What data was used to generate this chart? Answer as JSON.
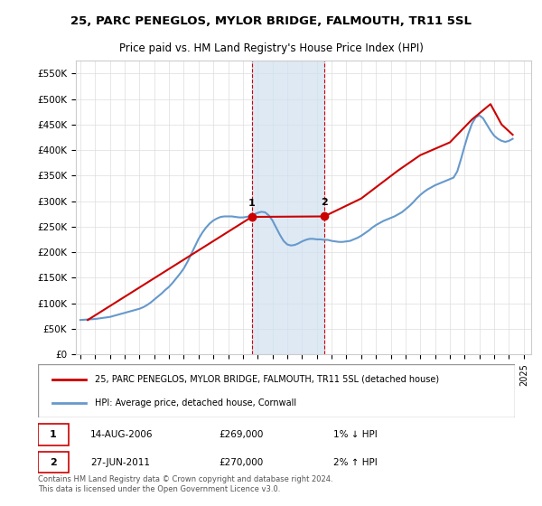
{
  "title": "25, PARC PENEGLOS, MYLOR BRIDGE, FALMOUTH, TR11 5SL",
  "subtitle": "Price paid vs. HM Land Registry's House Price Index (HPI)",
  "legend_line1": "25, PARC PENEGLOS, MYLOR BRIDGE, FALMOUTH, TR11 5SL (detached house)",
  "legend_line2": "HPI: Average price, detached house, Cornwall",
  "annotation1": {
    "num": "1",
    "date": "14-AUG-2006",
    "price": "£269,000",
    "pct": "1% ↓ HPI"
  },
  "annotation2": {
    "num": "2",
    "date": "27-JUN-2011",
    "price": "£270,000",
    "pct": "2% ↑ HPI"
  },
  "footer": "Contains HM Land Registry data © Crown copyright and database right 2024.\nThis data is licensed under the Open Government Licence v3.0.",
  "hpi_color": "#6699cc",
  "price_color": "#cc0000",
  "marker_color": "#cc0000",
  "shading_color": "#d0e0f0",
  "vline_color": "#cc0000",
  "ylim": [
    0,
    575000
  ],
  "yticks": [
    0,
    50000,
    100000,
    150000,
    200000,
    250000,
    300000,
    350000,
    400000,
    450000,
    500000,
    550000
  ],
  "xlim_start": 1995.0,
  "xlim_end": 2025.5,
  "hpi_years": [
    1995.0,
    1995.25,
    1995.5,
    1995.75,
    1996.0,
    1996.25,
    1996.5,
    1996.75,
    1997.0,
    1997.25,
    1997.5,
    1997.75,
    1998.0,
    1998.25,
    1998.5,
    1998.75,
    1999.0,
    1999.25,
    1999.5,
    1999.75,
    2000.0,
    2000.25,
    2000.5,
    2000.75,
    2001.0,
    2001.25,
    2001.5,
    2001.75,
    2002.0,
    2002.25,
    2002.5,
    2002.75,
    2003.0,
    2003.25,
    2003.5,
    2003.75,
    2004.0,
    2004.25,
    2004.5,
    2004.75,
    2005.0,
    2005.25,
    2005.5,
    2005.75,
    2006.0,
    2006.25,
    2006.5,
    2006.75,
    2007.0,
    2007.25,
    2007.5,
    2007.75,
    2008.0,
    2008.25,
    2008.5,
    2008.75,
    2009.0,
    2009.25,
    2009.5,
    2009.75,
    2010.0,
    2010.25,
    2010.5,
    2010.75,
    2011.0,
    2011.25,
    2011.5,
    2011.75,
    2012.0,
    2012.25,
    2012.5,
    2012.75,
    2013.0,
    2013.25,
    2013.5,
    2013.75,
    2014.0,
    2014.25,
    2014.5,
    2014.75,
    2015.0,
    2015.25,
    2015.5,
    2015.75,
    2016.0,
    2016.25,
    2016.5,
    2016.75,
    2017.0,
    2017.25,
    2017.5,
    2017.75,
    2018.0,
    2018.25,
    2018.5,
    2018.75,
    2019.0,
    2019.25,
    2019.5,
    2019.75,
    2020.0,
    2020.25,
    2020.5,
    2020.75,
    2021.0,
    2021.25,
    2021.5,
    2021.75,
    2022.0,
    2022.25,
    2022.5,
    2022.75,
    2023.0,
    2023.25,
    2023.5,
    2023.75,
    2024.0,
    2024.25
  ],
  "hpi_values": [
    67000,
    67500,
    68000,
    68500,
    69000,
    70000,
    71000,
    72000,
    73000,
    75000,
    77000,
    79000,
    81000,
    83000,
    85000,
    87000,
    89000,
    92000,
    96000,
    101000,
    107000,
    113000,
    119000,
    126000,
    132000,
    140000,
    149000,
    158000,
    168000,
    181000,
    196000,
    211000,
    226000,
    238000,
    248000,
    256000,
    262000,
    266000,
    269000,
    270000,
    270000,
    270000,
    269000,
    268000,
    268000,
    269000,
    271000,
    274000,
    277000,
    279000,
    278000,
    272000,
    262000,
    248000,
    234000,
    222000,
    215000,
    213000,
    214000,
    217000,
    221000,
    224000,
    226000,
    226000,
    225000,
    225000,
    224000,
    224000,
    222000,
    221000,
    220000,
    220000,
    221000,
    222000,
    225000,
    228000,
    232000,
    237000,
    242000,
    248000,
    253000,
    257000,
    261000,
    264000,
    267000,
    270000,
    274000,
    278000,
    284000,
    290000,
    297000,
    305000,
    312000,
    318000,
    323000,
    327000,
    331000,
    334000,
    337000,
    340000,
    343000,
    346000,
    358000,
    382000,
    408000,
    432000,
    452000,
    464000,
    468000,
    462000,
    450000,
    438000,
    428000,
    422000,
    418000,
    416000,
    418000,
    422000
  ],
  "price_years": [
    1995.5,
    2006.6,
    2011.5,
    2014.0,
    2016.5,
    2018.0,
    2020.0,
    2021.5,
    2022.75,
    2023.5,
    2024.25
  ],
  "price_values": [
    67000,
    269000,
    270000,
    305000,
    360000,
    390000,
    415000,
    460000,
    490000,
    450000,
    430000
  ],
  "marker1_year": 2006.6,
  "marker1_value": 269000,
  "marker2_year": 2011.5,
  "marker2_value": 270000,
  "shade_x1": 2006.6,
  "shade_x2": 2011.5,
  "xtick_years": [
    1995,
    1996,
    1997,
    1998,
    1999,
    2000,
    2001,
    2002,
    2003,
    2004,
    2005,
    2006,
    2007,
    2008,
    2009,
    2010,
    2011,
    2012,
    2013,
    2014,
    2015,
    2016,
    2017,
    2018,
    2019,
    2020,
    2021,
    2022,
    2023,
    2024,
    2025
  ]
}
